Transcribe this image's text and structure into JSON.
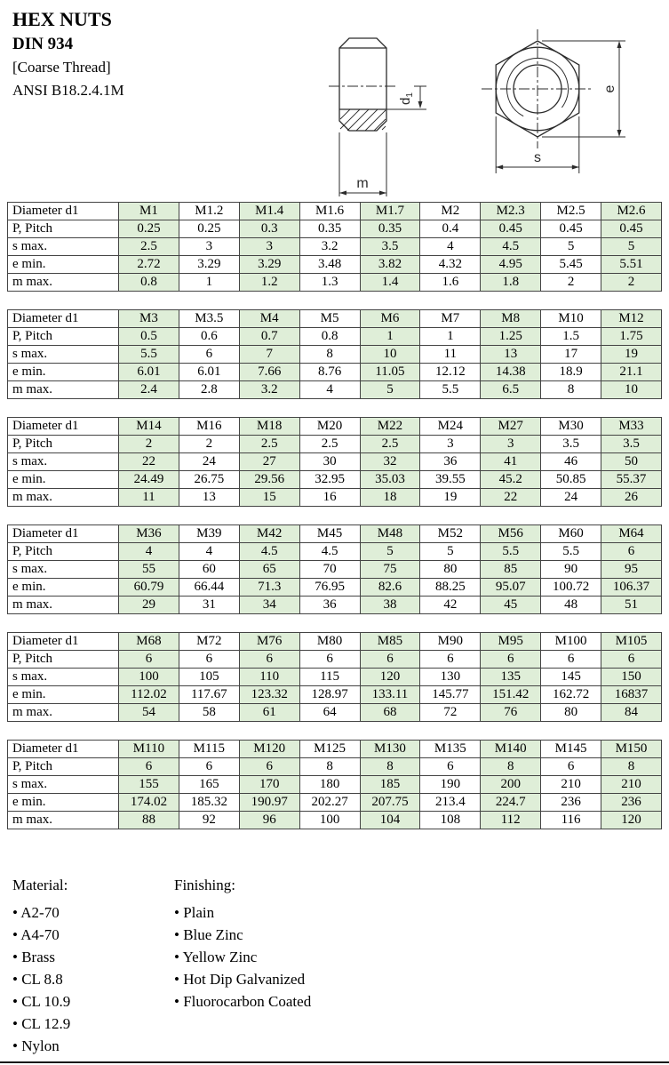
{
  "page": {
    "title": "HEX NUTS",
    "standard": "DIN 934",
    "thread": "[Coarse Thread]",
    "ansi": "ANSI B18.2.4.1M"
  },
  "drawing": {
    "label_d1": "d",
    "label_d1_sub": "1",
    "label_m": "m",
    "label_e": "e",
    "label_s": "s"
  },
  "row_labels": [
    "Diameter d1",
    "P, Pitch",
    "s max.",
    "e min.",
    "m max."
  ],
  "tables": [
    {
      "columns": [
        "M1",
        "M1.2",
        "M1.4",
        "M1.6",
        "M1.7",
        "M2",
        "M2.3",
        "M2.5",
        "M2.6"
      ],
      "data": [
        [
          "0.25",
          "0.25",
          "0.3",
          "0.35",
          "0.35",
          "0.4",
          "0.45",
          "0.45",
          "0.45"
        ],
        [
          "2.5",
          "3",
          "3",
          "3.2",
          "3.5",
          "4",
          "4.5",
          "5",
          "5"
        ],
        [
          "2.72",
          "3.29",
          "3.29",
          "3.48",
          "3.82",
          "4.32",
          "4.95",
          "5.45",
          "5.51"
        ],
        [
          "0.8",
          "1",
          "1.2",
          "1.3",
          "1.4",
          "1.6",
          "1.8",
          "2",
          "2"
        ]
      ]
    },
    {
      "columns": [
        "M3",
        "M3.5",
        "M4",
        "M5",
        "M6",
        "M7",
        "M8",
        "M10",
        "M12"
      ],
      "data": [
        [
          "0.5",
          "0.6",
          "0.7",
          "0.8",
          "1",
          "1",
          "1.25",
          "1.5",
          "1.75"
        ],
        [
          "5.5",
          "6",
          "7",
          "8",
          "10",
          "11",
          "13",
          "17",
          "19"
        ],
        [
          "6.01",
          "6.01",
          "7.66",
          "8.76",
          "11.05",
          "12.12",
          "14.38",
          "18.9",
          "21.1"
        ],
        [
          "2.4",
          "2.8",
          "3.2",
          "4",
          "5",
          "5.5",
          "6.5",
          "8",
          "10"
        ]
      ]
    },
    {
      "columns": [
        "M14",
        "M16",
        "M18",
        "M20",
        "M22",
        "M24",
        "M27",
        "M30",
        "M33"
      ],
      "data": [
        [
          "2",
          "2",
          "2.5",
          "2.5",
          "2.5",
          "3",
          "3",
          "3.5",
          "3.5"
        ],
        [
          "22",
          "24",
          "27",
          "30",
          "32",
          "36",
          "41",
          "46",
          "50"
        ],
        [
          "24.49",
          "26.75",
          "29.56",
          "32.95",
          "35.03",
          "39.55",
          "45.2",
          "50.85",
          "55.37"
        ],
        [
          "11",
          "13",
          "15",
          "16",
          "18",
          "19",
          "22",
          "24",
          "26"
        ]
      ]
    },
    {
      "columns": [
        "M36",
        "M39",
        "M42",
        "M45",
        "M48",
        "M52",
        "M56",
        "M60",
        "M64"
      ],
      "data": [
        [
          "4",
          "4",
          "4.5",
          "4.5",
          "5",
          "5",
          "5.5",
          "5.5",
          "6"
        ],
        [
          "55",
          "60",
          "65",
          "70",
          "75",
          "80",
          "85",
          "90",
          "95"
        ],
        [
          "60.79",
          "66.44",
          "71.3",
          "76.95",
          "82.6",
          "88.25",
          "95.07",
          "100.72",
          "106.37"
        ],
        [
          "29",
          "31",
          "34",
          "36",
          "38",
          "42",
          "45",
          "48",
          "51"
        ]
      ]
    },
    {
      "columns": [
        "M68",
        "M72",
        "M76",
        "M80",
        "M85",
        "M90",
        "M95",
        "M100",
        "M105"
      ],
      "data": [
        [
          "6",
          "6",
          "6",
          "6",
          "6",
          "6",
          "6",
          "6",
          "6"
        ],
        [
          "100",
          "105",
          "110",
          "115",
          "120",
          "130",
          "135",
          "145",
          "150"
        ],
        [
          "112.02",
          "117.67",
          "123.32",
          "128.97",
          "133.11",
          "145.77",
          "151.42",
          "162.72",
          "16837"
        ],
        [
          "54",
          "58",
          "61",
          "64",
          "68",
          "72",
          "76",
          "80",
          "84"
        ]
      ]
    },
    {
      "columns": [
        "M110",
        "M115",
        "M120",
        "M125",
        "M130",
        "M135",
        "M140",
        "M145",
        "M150"
      ],
      "data": [
        [
          "6",
          "6",
          "6",
          "8",
          "8",
          "6",
          "8",
          "6",
          "8"
        ],
        [
          "155",
          "165",
          "170",
          "180",
          "185",
          "190",
          "200",
          "210",
          "210"
        ],
        [
          "174.02",
          "185.32",
          "190.97",
          "202.27",
          "207.75",
          "213.4",
          "224.7",
          "236",
          "236"
        ],
        [
          "88",
          "92",
          "96",
          "100",
          "104",
          "108",
          "112",
          "116",
          "120"
        ]
      ]
    }
  ],
  "material": {
    "title": "Material:",
    "items": [
      "A2-70",
      "A4-70",
      "Brass",
      "CL 8.8",
      "CL 10.9",
      "CL 12.9",
      "Nylon"
    ]
  },
  "finishing": {
    "title": "Finishing:",
    "items": [
      "Plain",
      "Blue Zinc",
      "Yellow Zinc",
      "Hot Dip Galvanized",
      "Fluorocarbon Coated"
    ]
  },
  "bullet": "•",
  "colors": {
    "shade": "#dfeed8",
    "border": "#444444"
  }
}
